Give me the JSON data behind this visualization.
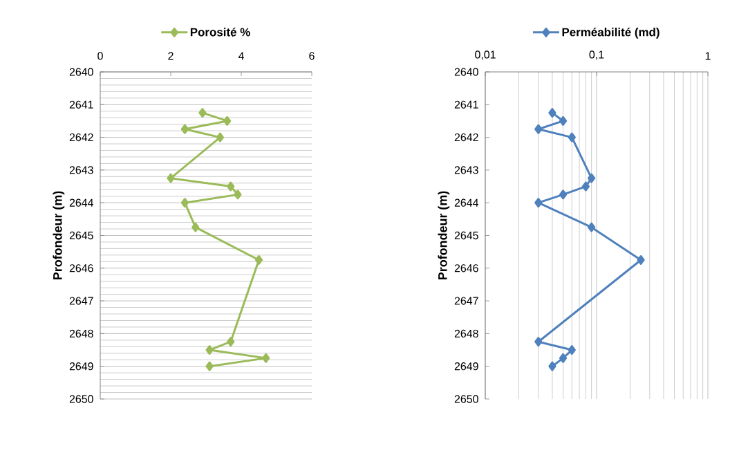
{
  "chart_data": [
    {
      "type": "line",
      "ylabel": "Profondeur (m)",
      "legend": "top",
      "marker": "diamond",
      "line_style": "solid",
      "grid": "y",
      "xlim": [
        0,
        6
      ],
      "xticks": [
        0,
        2,
        4,
        6
      ],
      "ylim": [
        2650,
        2640
      ],
      "yticks": [
        2640,
        2641,
        2642,
        2643,
        2644,
        2645,
        2646,
        2647,
        2648,
        2649,
        2650
      ],
      "series": [
        {
          "name": "Porosité %",
          "color": "#9bbb59",
          "x": [
            2.9,
            3.6,
            2.4,
            3.4,
            2.0,
            3.7,
            3.9,
            2.4,
            2.7,
            4.5,
            3.7,
            3.1,
            4.7,
            3.1
          ],
          "values": [
            2641.25,
            2641.5,
            2641.75,
            2642,
            2643.25,
            2643.5,
            2643.75,
            2644,
            2644.75,
            2645.75,
            2648.25,
            2648.5,
            2648.75,
            2649
          ]
        }
      ]
    },
    {
      "type": "line",
      "ylabel": "Profondeur (m)",
      "legend": "top",
      "marker": "diamond",
      "line_style": "solid",
      "grid": "x",
      "log": "x",
      "xlim": [
        0.01,
        1
      ],
      "xticks": [
        {
          "value": 0.01,
          "label": "0,01"
        },
        {
          "value": 0.1,
          "label": "0,1"
        },
        1
      ],
      "ylim": [
        2650,
        2640
      ],
      "yticks": [
        2640,
        2641,
        2642,
        2643,
        2644,
        2645,
        2646,
        2647,
        2648,
        2649,
        2650
      ],
      "series": [
        {
          "name": "Perméabilité (md)",
          "color": "#4f81bd",
          "x": [
            0.04,
            0.05,
            0.03,
            0.06,
            0.09,
            0.08,
            0.05,
            0.03,
            0.09,
            0.25,
            0.03,
            0.06,
            0.05,
            0.04
          ],
          "values": [
            2641.25,
            2641.5,
            2641.75,
            2642,
            2643.25,
            2643.5,
            2643.75,
            2644,
            2644.75,
            2645.75,
            2648.25,
            2648.5,
            2648.75,
            2649
          ]
        }
      ]
    }
  ]
}
